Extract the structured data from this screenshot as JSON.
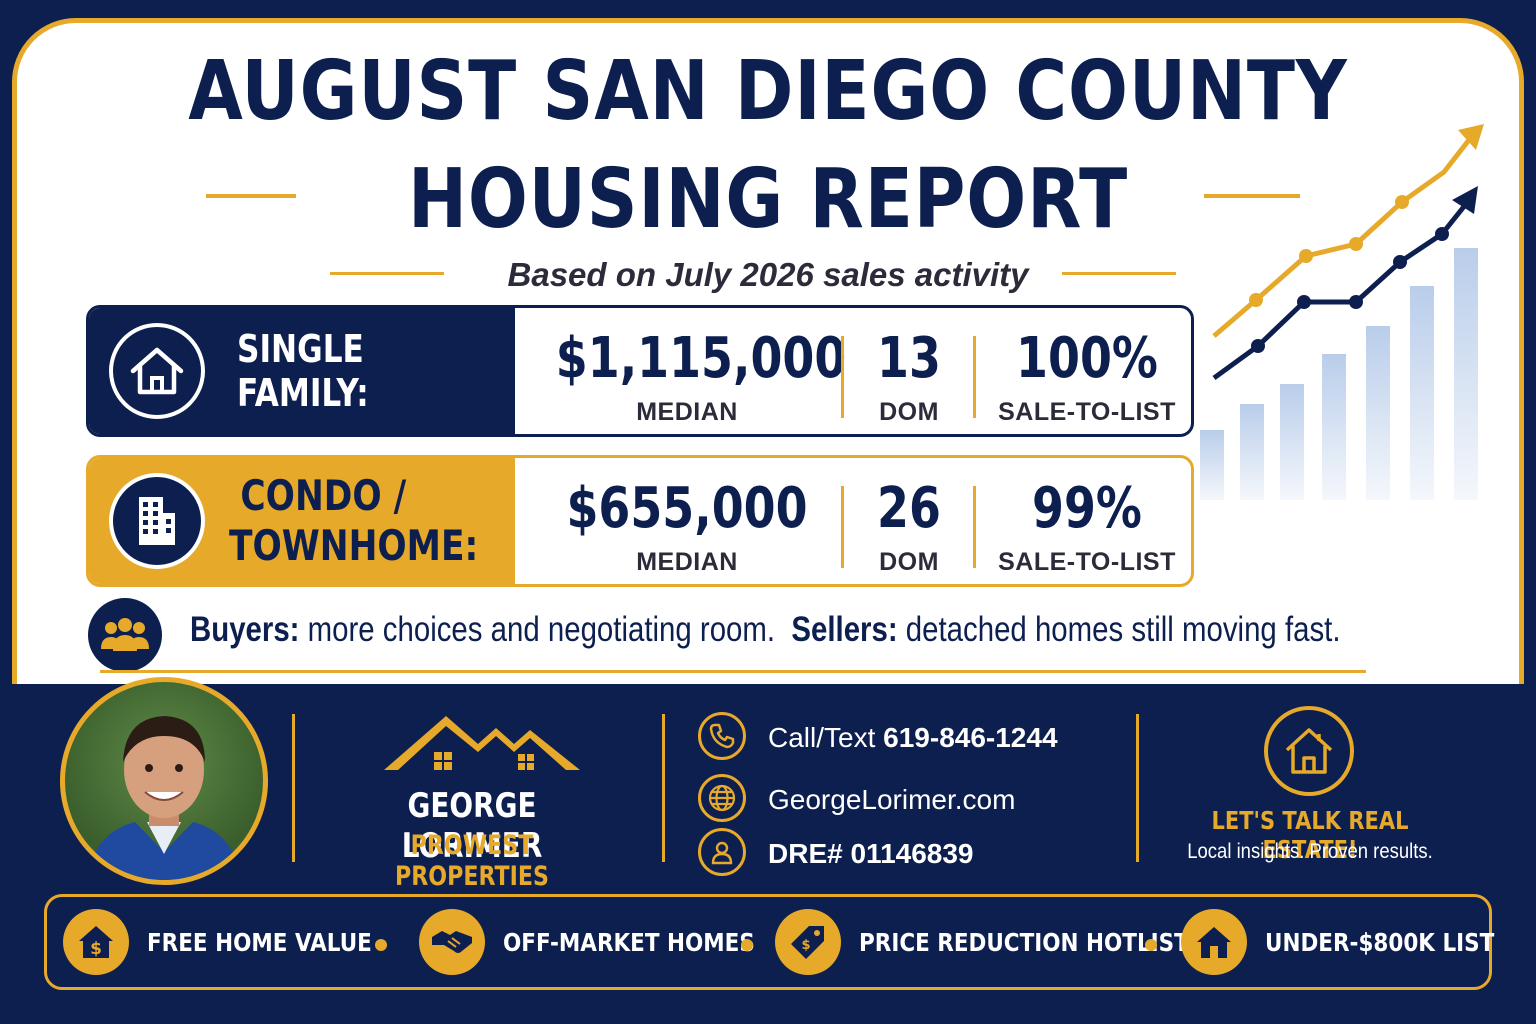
{
  "header": {
    "title_line1": "AUGUST SAN DIEGO COUNTY",
    "title_line2": "HOUSING REPORT",
    "subtitle": "Based on July 2026 sales activity"
  },
  "stats": {
    "single_family": {
      "label": "SINGLE FAMILY:",
      "median_value": "$1,115,000",
      "median_label": "MEDIAN",
      "dom_value": "13",
      "dom_label": "DOM",
      "sale_to_list_value": "100%",
      "sale_to_list_label": "SALE-TO-LIST"
    },
    "condo": {
      "label_line1": "CONDO /",
      "label_line2": "TOWNHOME:",
      "median_value": "$655,000",
      "median_label": "MEDIAN",
      "dom_value": "26",
      "dom_label": "DOM",
      "sale_to_list_value": "99%",
      "sale_to_list_label": "SALE-TO-LIST"
    }
  },
  "insight": {
    "buyers_label": "Buyers:",
    "buyers_text": "more choices and negotiating room.",
    "sellers_label": "Sellers:",
    "sellers_text": "detached homes still moving fast."
  },
  "agent": {
    "name": "GEORGE LORIMER",
    "company": "PROWEST PROPERTIES"
  },
  "contact": {
    "phone_prefix": "Call/Text",
    "phone": "619-846-1244",
    "website": "GeorgeLorimer.com",
    "license": "DRE# 01146839"
  },
  "cta": {
    "title": "LET'S TALK REAL ESTATE!",
    "subtitle": "Local insights. Proven results."
  },
  "services": [
    {
      "label": "FREE HOME VALUE",
      "icon": "house-dollar-icon"
    },
    {
      "label": "OFF-MARKET HOMES",
      "icon": "handshake-icon"
    },
    {
      "label": "PRICE REDUCTION HOTLIST",
      "icon": "price-tag-icon"
    },
    {
      "label": "UNDER-$800K LIST",
      "icon": "house-icon"
    }
  ],
  "colors": {
    "navy": "#0d1f4f",
    "gold": "#e6a92a",
    "white": "#ffffff",
    "bar_blue": "#b9cdea"
  }
}
